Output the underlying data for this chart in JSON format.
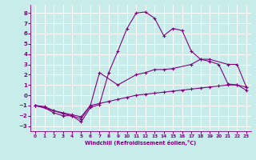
{
  "xlabel": "Windchill (Refroidissement éolien,°C)",
  "background_color": "#c8ecea",
  "grid_color": "#ffffff",
  "line_color": "#800080",
  "xlim": [
    -0.5,
    23.5
  ],
  "ylim": [
    -3.5,
    8.8
  ],
  "xticks": [
    0,
    1,
    2,
    3,
    4,
    5,
    6,
    7,
    8,
    9,
    10,
    11,
    12,
    13,
    14,
    15,
    16,
    17,
    18,
    19,
    20,
    21,
    22,
    23
  ],
  "yticks": [
    -3,
    -2,
    -1,
    0,
    1,
    2,
    3,
    4,
    5,
    6,
    7,
    8
  ],
  "line2_x": [
    0,
    1,
    2,
    3,
    4,
    5,
    6,
    7,
    8,
    9,
    10,
    11,
    12,
    13,
    14,
    15,
    16,
    17,
    18,
    19,
    20,
    21,
    22,
    23
  ],
  "line2_y": [
    -1.0,
    -1.2,
    -1.7,
    -2.0,
    -2.0,
    -2.6,
    -1.2,
    -0.9,
    2.2,
    4.3,
    6.5,
    8.0,
    8.1,
    7.5,
    5.8,
    6.5,
    6.3,
    4.3,
    3.5,
    3.3,
    3.0,
    1.1,
    1.0,
    0.5
  ],
  "line3_x": [
    0,
    2,
    3,
    4,
    5,
    6,
    7,
    9,
    11,
    12,
    13,
    14,
    15,
    17,
    18,
    19,
    21,
    22,
    23
  ],
  "line3_y": [
    -1.0,
    -1.5,
    -1.8,
    -2.0,
    -2.3,
    -1.0,
    2.2,
    1.0,
    2.0,
    2.2,
    2.5,
    2.5,
    2.6,
    3.0,
    3.5,
    3.5,
    3.0,
    3.0,
    0.8
  ],
  "line1_x": [
    0,
    1,
    2,
    3,
    4,
    5,
    6,
    7,
    8,
    9,
    10,
    11,
    12,
    13,
    14,
    15,
    16,
    17,
    18,
    19,
    20,
    21,
    22,
    23
  ],
  "line1_y": [
    -1.0,
    -1.1,
    -1.5,
    -1.7,
    -1.9,
    -2.1,
    -1.0,
    -0.8,
    -0.6,
    -0.4,
    -0.2,
    0.0,
    0.1,
    0.2,
    0.3,
    0.4,
    0.5,
    0.6,
    0.7,
    0.8,
    0.9,
    1.0,
    1.0,
    0.8
  ]
}
